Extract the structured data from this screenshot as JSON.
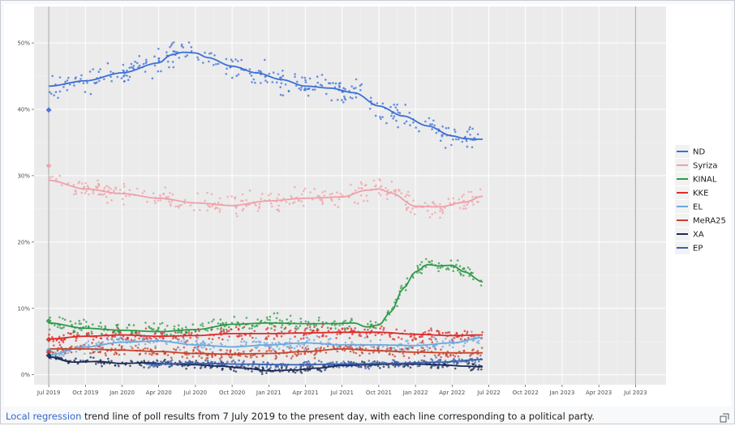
{
  "caption": {
    "link_text": "Local regression",
    "rest_text": " trend line of poll results from 7 July 2019 to the present day, with each line corresponding to a political party."
  },
  "icons": {
    "enlarge": "enlarge-icon"
  },
  "chart_data": {
    "type": "line",
    "title": "",
    "xlabel": "",
    "ylabel": "",
    "x_tick_labels": [
      "Jul 2019",
      "Oct 2019",
      "Jan 2020",
      "Apr 2020",
      "Jul 2020",
      "Oct 2020",
      "Jan 2021",
      "Apr 2021",
      "Jul 2021",
      "Oct 2021",
      "Jan 2022",
      "Apr 2022",
      "Jul 2022",
      "Oct 2022",
      "Jan 2023",
      "Apr 2023",
      "Jul 2023"
    ],
    "y_tick_labels": [
      "0%",
      "10%",
      "20%",
      "30%",
      "40%",
      "50%"
    ],
    "y_ticks": [
      0,
      10,
      20,
      30,
      40,
      50
    ],
    "ylim": [
      -1.5,
      55.5
    ],
    "xlim_months": [
      -1.2,
      50.5
    ],
    "x_axis_months_from_jul_2019": [
      0,
      3,
      6,
      9,
      12,
      15,
      18,
      21,
      24,
      27,
      30,
      33,
      36,
      39,
      42,
      45,
      48
    ],
    "election_markers_months": [
      0,
      48
    ],
    "grid": true,
    "legend_position": "right",
    "background": "#ebebeb",
    "series": [
      {
        "name": "ND",
        "color": "#3a6fd8",
        "election_result": 39.9,
        "spread": 1.6,
        "x": [
          0,
          3,
          6,
          9,
          10,
          11,
          12,
          13,
          15,
          17,
          19,
          21,
          23,
          25,
          27,
          29,
          31,
          33,
          34,
          35,
          35.5
        ],
        "values": [
          43.5,
          44.3,
          45.5,
          47.0,
          48.2,
          48.6,
          48.5,
          47.8,
          46.5,
          45.5,
          44.5,
          43.5,
          43.2,
          42.5,
          40.5,
          39.0,
          37.5,
          36.0,
          35.6,
          35.5,
          35.5
        ]
      },
      {
        "name": "Syriza",
        "color": "#f0a0a8",
        "election_result": 31.5,
        "spread": 1.3,
        "x": [
          0,
          3,
          6,
          9,
          12,
          15,
          18,
          21,
          24,
          26,
          27,
          28,
          30,
          32,
          34,
          35.5
        ],
        "values": [
          29.3,
          28.0,
          27.3,
          26.6,
          25.9,
          25.5,
          26.2,
          26.6,
          26.8,
          27.8,
          28.0,
          27.4,
          25.4,
          25.3,
          26.0,
          26.9
        ]
      },
      {
        "name": "KINAL",
        "color": "#2e9948",
        "election_result": 8.1,
        "spread": 1.0,
        "x": [
          0,
          3,
          6,
          9,
          12,
          15,
          18,
          21,
          23,
          25,
          26,
          27,
          28,
          29,
          30,
          31,
          32,
          33,
          34,
          35.5
        ],
        "values": [
          7.8,
          7.0,
          6.7,
          6.5,
          6.8,
          7.6,
          7.8,
          7.7,
          7.7,
          7.8,
          7.2,
          7.5,
          9.5,
          13.0,
          15.5,
          16.6,
          16.4,
          16.5,
          15.5,
          14.0
        ]
      },
      {
        "name": "KKE",
        "color": "#dd2b2b",
        "election_result": 5.3,
        "spread": 0.9,
        "x": [
          0,
          3,
          6,
          9,
          12,
          15,
          18,
          21,
          24,
          27,
          30,
          33,
          35.5
        ],
        "values": [
          5.4,
          5.8,
          6.0,
          5.8,
          5.9,
          6.2,
          6.2,
          6.3,
          6.4,
          6.4,
          6.1,
          5.9,
          6.0
        ]
      },
      {
        "name": "EL",
        "color": "#6fa8dc",
        "election_result": 3.7,
        "spread": 0.8,
        "x": [
          0,
          3,
          6,
          9,
          12,
          15,
          18,
          21,
          24,
          27,
          30,
          33,
          35.5
        ],
        "values": [
          3.0,
          4.2,
          4.9,
          5.1,
          4.5,
          4.2,
          4.5,
          4.8,
          4.5,
          4.5,
          4.4,
          4.8,
          5.6
        ]
      },
      {
        "name": "MeRA25",
        "color": "#c8412b",
        "election_result": 3.4,
        "spread": 0.7,
        "x": [
          0,
          3,
          6,
          9,
          12,
          15,
          18,
          21,
          24,
          27,
          30,
          33,
          35.5
        ],
        "values": [
          3.9,
          3.9,
          3.7,
          3.5,
          3.2,
          3.1,
          3.2,
          3.5,
          3.9,
          3.6,
          3.4,
          3.3,
          3.3
        ]
      },
      {
        "name": "XA",
        "color": "#1a2a55",
        "election_result": 2.9,
        "spread": 0.5,
        "x": [
          0,
          2,
          4,
          6,
          8,
          10,
          12,
          14,
          16,
          18,
          20,
          22,
          24,
          26,
          28,
          30,
          32,
          34,
          35.5
        ],
        "values": [
          2.7,
          1.9,
          2.0,
          1.7,
          1.8,
          1.6,
          1.5,
          1.3,
          1.0,
          0.6,
          0.7,
          1.0,
          1.4,
          1.5,
          1.6,
          1.6,
          1.5,
          1.3,
          1.2
        ]
      },
      {
        "name": "EP",
        "color": "#3a5fae",
        "election_result": null,
        "spread": 0.5,
        "x": [
          8,
          12,
          16,
          20,
          24,
          28,
          32,
          35.5
        ],
        "values": [
          1.6,
          1.7,
          1.6,
          1.5,
          1.6,
          1.7,
          1.9,
          2.3
        ]
      }
    ]
  }
}
